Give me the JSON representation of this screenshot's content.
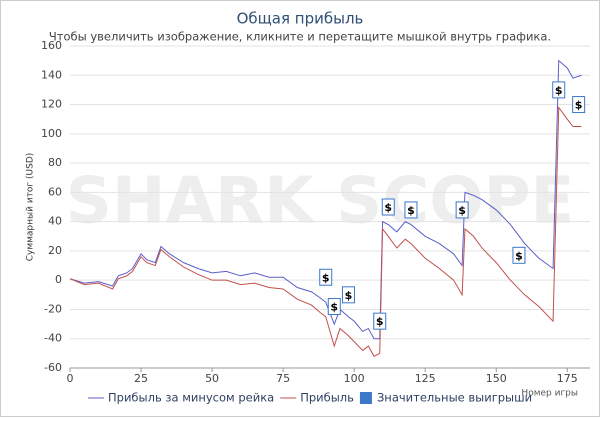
{
  "chart_data": {
    "type": "line",
    "title": "Общая прибыль",
    "subtitle": "Чтобы увеличить изображение, кликните и перетащите мышкой внутрь графика.",
    "watermark": "SHARK SCOPE",
    "y_label": "Суммарный итог (USD)",
    "x_label": "Номер игры",
    "x": [
      0,
      5,
      10,
      15,
      17,
      20,
      22,
      25,
      27,
      30,
      32,
      35,
      40,
      45,
      50,
      55,
      60,
      65,
      70,
      75,
      80,
      85,
      88,
      90,
      93,
      95,
      98,
      100,
      103,
      105,
      107,
      109,
      110,
      112,
      115,
      118,
      120,
      125,
      130,
      135,
      138,
      139,
      142,
      145,
      150,
      155,
      160,
      165,
      170,
      172,
      175,
      177,
      180
    ],
    "series": [
      {
        "name": "Прибыль за минусом рейка",
        "color": "#5a5ec8",
        "values": [
          1,
          -2,
          -1,
          -4,
          3,
          5,
          8,
          18,
          14,
          12,
          23,
          18,
          12,
          8,
          5,
          6,
          3,
          5,
          2,
          2,
          -5,
          -8,
          -12,
          -15,
          -30,
          -20,
          -25,
          -28,
          -35,
          -33,
          -40,
          -40,
          40,
          38,
          33,
          40,
          38,
          30,
          25,
          18,
          10,
          60,
          58,
          55,
          48,
          38,
          25,
          15,
          8,
          150,
          145,
          138,
          140
        ]
      },
      {
        "name": "Прибыль",
        "color": "#c0504d",
        "values": [
          1,
          -3,
          -2,
          -6,
          1,
          3,
          6,
          16,
          12,
          10,
          21,
          16,
          9,
          4,
          0,
          0,
          -3,
          -2,
          -5,
          -6,
          -13,
          -17,
          -22,
          -25,
          -45,
          -33,
          -38,
          -42,
          -48,
          -45,
          -52,
          -50,
          35,
          30,
          22,
          28,
          25,
          15,
          8,
          0,
          -10,
          35,
          30,
          22,
          12,
          0,
          -10,
          -18,
          -28,
          118,
          110,
          105,
          105
        ]
      }
    ],
    "wins": {
      "name": "Значительные выигрыши",
      "color": "#3a78c9",
      "label": "$",
      "x": [
        90,
        93,
        98,
        109,
        112,
        120,
        138,
        158,
        172,
        179
      ],
      "values": [
        2,
        -18,
        -10,
        -28,
        50,
        48,
        48,
        17,
        130,
        120
      ]
    },
    "xlim": [
      0,
      183
    ],
    "xticks": [
      0,
      25,
      50,
      75,
      100,
      125,
      150,
      175
    ],
    "ylim": [
      -60,
      160
    ],
    "yticks": [
      -60,
      -40,
      -20,
      0,
      20,
      40,
      60,
      80,
      100,
      120,
      140,
      160
    ],
    "grid": true
  }
}
